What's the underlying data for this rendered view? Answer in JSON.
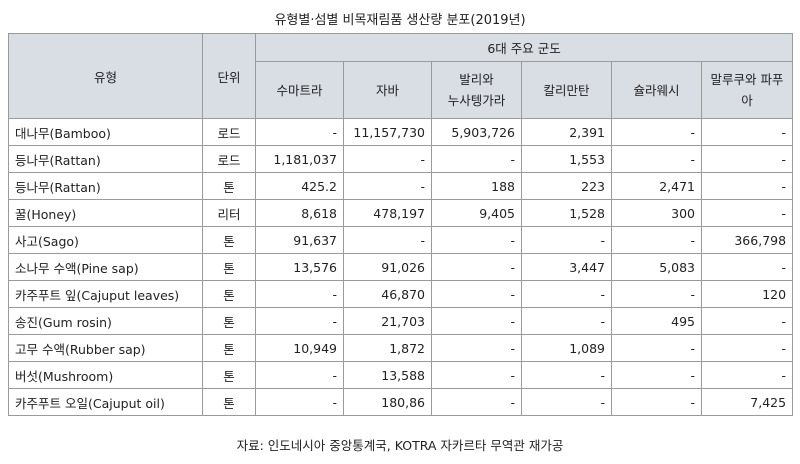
{
  "title": "유형별·섬별 비목재림품 생산량 분포(2019년)",
  "headers": {
    "type": "유형",
    "unit": "단위",
    "group": "6대 주요 군도",
    "regions": [
      "수마트라",
      "자바",
      "발리와\n누사텡가라",
      "칼리만탄",
      "슐라웨시",
      "말루쿠와 파푸아"
    ]
  },
  "rows": [
    {
      "name": "대나무(Bamboo)",
      "unit": "로드",
      "values": [
        "-",
        "11,157,730",
        "5,903,726",
        "2,391",
        "-",
        "-"
      ]
    },
    {
      "name": "등나무(Rattan)",
      "unit": "로드",
      "values": [
        "1,181,037",
        "-",
        "-",
        "1,553",
        "-",
        "-"
      ]
    },
    {
      "name": "등나무(Rattan)",
      "unit": "톤",
      "values": [
        "425.2",
        "-",
        "188",
        "223",
        "2,471",
        "-"
      ]
    },
    {
      "name": "꿀(Honey)",
      "unit": "리터",
      "values": [
        "8,618",
        "478,197",
        "9,405",
        "1,528",
        "300",
        "-"
      ]
    },
    {
      "name": "사고(Sago)",
      "unit": "톤",
      "values": [
        "91,637",
        "-",
        "-",
        "-",
        "-",
        "366,798"
      ]
    },
    {
      "name": "소나무 수액(Pine sap)",
      "unit": "톤",
      "values": [
        "13,576",
        "91,026",
        "-",
        "3,447",
        "5,083",
        "-"
      ]
    },
    {
      "name": "카주푸트 잎(Cajuput leaves)",
      "unit": "톤",
      "values": [
        "-",
        "46,870",
        "-",
        "-",
        "-",
        "120"
      ]
    },
    {
      "name": "송진(Gum rosin)",
      "unit": "톤",
      "values": [
        "-",
        "21,703",
        "-",
        "-",
        "495",
        "-"
      ]
    },
    {
      "name": "고무 수액(Rubber sap)",
      "unit": "톤",
      "values": [
        "10,949",
        "1,872",
        "-",
        "1,089",
        "-",
        "-"
      ]
    },
    {
      "name": "버섯(Mushroom)",
      "unit": "톤",
      "values": [
        "-",
        "13,588",
        "-",
        "-",
        "-",
        "-"
      ]
    },
    {
      "name": "카주푸트 오일(Cajuput oil)",
      "unit": "톤",
      "values": [
        "-",
        "180,86",
        "-",
        "-",
        "-",
        "7,425"
      ]
    }
  ],
  "source": "자료: 인도네시아 중앙통계국, KOTRA 자카르타 무역관 재가공"
}
